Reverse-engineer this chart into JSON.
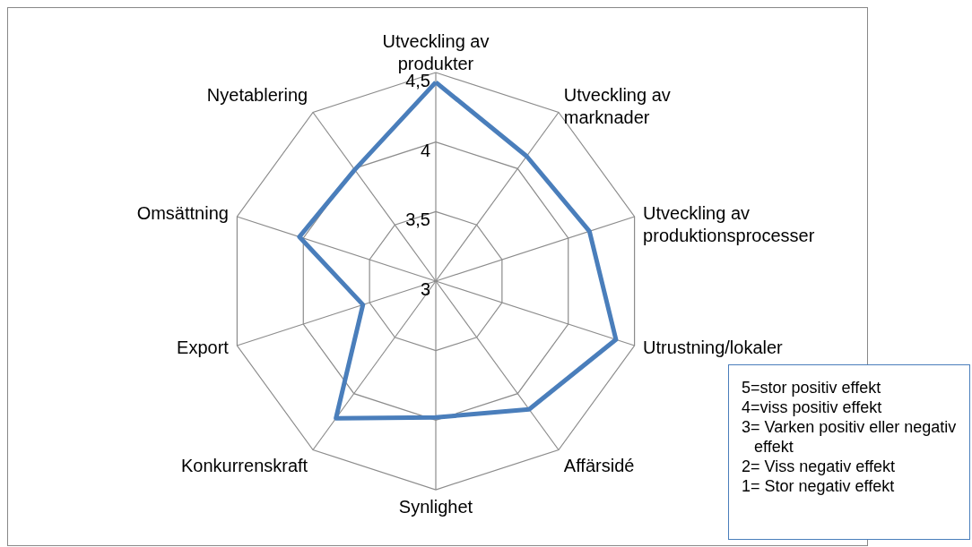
{
  "chart_data": {
    "type": "radar",
    "categories": [
      "Utveckling av produkter",
      "Utveckling av marknader",
      "Utveckling av produktionsprocesser",
      "Utrustning/lokaler",
      "Affärsidé",
      "Synlighet",
      "Konkurrenskraft",
      "Export",
      "Omsättning",
      "Nyetablering"
    ],
    "series": [
      {
        "color": "#4a7ebb",
        "values": [
          4.43,
          4.11,
          4.16,
          4.36,
          4.14,
          3.98,
          4.22,
          3.55,
          4.03,
          3.99
        ]
      }
    ],
    "ylim": [
      3,
      4.5
    ],
    "yticks": [
      3,
      {
        "value": 3.5,
        "label": "3,5"
      },
      4,
      {
        "value": 4.5,
        "label": "4,5"
      }
    ],
    "grid": true,
    "marker": "none",
    "line_style": "solid",
    "annotations": [
      "5=stor positiv effekt",
      "4=viss positiv effekt",
      "3= Varken positiv eller negativ effekt",
      "2= Viss negativ effekt",
      "1= Stor negativ effekt"
    ]
  }
}
